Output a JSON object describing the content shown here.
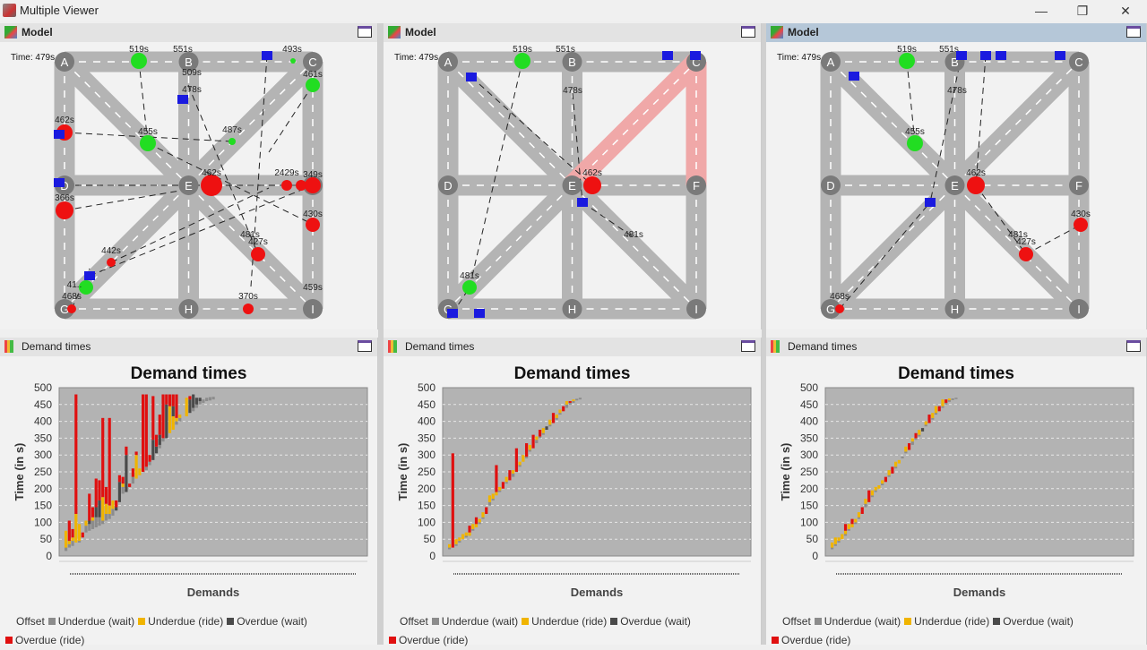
{
  "window": {
    "title": "Multiple Viewer",
    "minimize": "—",
    "restore": "❐",
    "close": "✕"
  },
  "colors": {
    "road": "#b4b4b4",
    "node": "#7a7a7a",
    "green": "#22dd22",
    "red": "#ee1111",
    "vehicle": "#1a1adf",
    "highlight": "#f0a8a8",
    "offset": "#b0b0b0",
    "underdue_wait": "#8c8c8c",
    "underdue_ride": "#f0b400",
    "overdue_wait": "#4a4a4a",
    "overdue_ride": "#e01010",
    "plot_bg": "#b3b3b3"
  },
  "nodes": [
    "A",
    "B",
    "C",
    "D",
    "E",
    "F",
    "G",
    "H",
    "I"
  ],
  "models": [
    {
      "title": "Model",
      "time": "Time: 479s",
      "labels": [
        "519s",
        "551s",
        "493s",
        "461s",
        "509s",
        "478s",
        "462s",
        "455s",
        "487s",
        "462s",
        "2429s",
        "349s",
        "366s",
        "430s",
        "481s",
        "427s",
        "442s",
        "41..",
        "468s",
        "370s",
        "459s"
      ]
    },
    {
      "title": "Model",
      "time": "Time: 479s",
      "labels": [
        "519s",
        "551s",
        "478s",
        "462s",
        "481s",
        "481s"
      ]
    },
    {
      "title": "Model",
      "time": "Time: 479s",
      "labels": [
        "519s",
        "551s",
        "478s",
        "455s",
        "462s",
        "430s",
        "481s",
        "427s",
        "468s"
      ]
    }
  ],
  "charts_header": "Demand times",
  "legend": [
    "Offset",
    "Underdue (wait)",
    "Underdue (ride)",
    "Overdue (wait)",
    "Overdue (ride)"
  ],
  "chart_data": [
    {
      "type": "bar",
      "stacked": true,
      "title": "Demand times",
      "xlabel": "Demands",
      "ylabel": "Time (in s)",
      "ylim": [
        0,
        500
      ],
      "yticks": [
        0,
        50,
        100,
        150,
        200,
        250,
        300,
        350,
        400,
        450,
        500
      ],
      "grid": true,
      "legend_position": "bottom",
      "series_order": [
        "Offset",
        "Underdue (wait)",
        "Underdue (ride)",
        "Overdue (wait)",
        "Overdue (ride)"
      ],
      "bars": [
        [
          15,
          10,
          50,
          0,
          0
        ],
        [
          25,
          10,
          10,
          0,
          60
        ],
        [
          30,
          15,
          10,
          0,
          25
        ],
        [
          40,
          0,
          85,
          0,
          355
        ],
        [
          40,
          5,
          50,
          0,
          0
        ],
        [
          55,
          0,
          0,
          0,
          15
        ],
        [
          70,
          20,
          15,
          0,
          0
        ],
        [
          75,
          20,
          0,
          10,
          80
        ],
        [
          80,
          25,
          10,
          0,
          30
        ],
        [
          85,
          30,
          0,
          30,
          85
        ],
        [
          90,
          25,
          0,
          50,
          60
        ],
        [
          95,
          10,
          70,
          0,
          235
        ],
        [
          105,
          20,
          30,
          0,
          50
        ],
        [
          110,
          15,
          25,
          0,
          260
        ],
        [
          120,
          20,
          25,
          0,
          0
        ],
        [
          135,
          0,
          0,
          10,
          20
        ],
        [
          160,
          0,
          0,
          60,
          20
        ],
        [
          185,
          20,
          10,
          0,
          20
        ],
        [
          190,
          0,
          0,
          110,
          25
        ],
        [
          205,
          0,
          0,
          0,
          10
        ],
        [
          215,
          20,
          0,
          0,
          25
        ],
        [
          230,
          0,
          70,
          0,
          10
        ],
        [
          240,
          0,
          20,
          0,
          0
        ],
        [
          250,
          0,
          0,
          0,
          230
        ],
        [
          255,
          10,
          0,
          0,
          215
        ],
        [
          270,
          10,
          0,
          0,
          20
        ],
        [
          285,
          0,
          0,
          60,
          130
        ],
        [
          305,
          0,
          0,
          20,
          35
        ],
        [
          320,
          10,
          0,
          30,
          60
        ],
        [
          340,
          10,
          0,
          0,
          130
        ],
        [
          350,
          0,
          0,
          100,
          30
        ],
        [
          365,
          0,
          80,
          0,
          35
        ],
        [
          375,
          0,
          40,
          30,
          35
        ],
        [
          390,
          10,
          10,
          0,
          70
        ],
        [
          400,
          10,
          10,
          0,
          0
        ],
        [
          410,
          0,
          0,
          0,
          0
        ],
        [
          415,
          0,
          55,
          0,
          0
        ],
        [
          425,
          0,
          0,
          40,
          10
        ],
        [
          430,
          10,
          0,
          40,
          0
        ],
        [
          440,
          10,
          0,
          20,
          0
        ],
        [
          450,
          10,
          0,
          10,
          0
        ],
        [
          455,
          10,
          0,
          0,
          0
        ],
        [
          460,
          10,
          0,
          0,
          0
        ],
        [
          462,
          10,
          0,
          0,
          0
        ],
        [
          465,
          8,
          0,
          0,
          0
        ]
      ]
    },
    {
      "type": "bar",
      "stacked": true,
      "title": "Demand times",
      "xlabel": "Demands",
      "ylabel": "Time (in s)",
      "ylim": [
        0,
        500
      ],
      "yticks": [
        0,
        50,
        100,
        150,
        200,
        250,
        300,
        350,
        400,
        450,
        500
      ],
      "grid": true,
      "legend_position": "bottom",
      "series_order": [
        "Offset",
        "Underdue (wait)",
        "Underdue (ride)",
        "Overdue (wait)",
        "Overdue (ride)"
      ],
      "bars": [
        [
          20,
          5,
          10,
          0,
          0
        ],
        [
          25,
          0,
          0,
          0,
          280
        ],
        [
          30,
          5,
          15,
          0,
          0
        ],
        [
          40,
          5,
          10,
          0,
          0
        ],
        [
          50,
          0,
          15,
          0,
          0
        ],
        [
          55,
          5,
          10,
          0,
          0
        ],
        [
          60,
          0,
          10,
          0,
          20
        ],
        [
          75,
          5,
          15,
          0,
          0
        ],
        [
          85,
          0,
          10,
          0,
          20
        ],
        [
          95,
          5,
          10,
          0,
          0
        ],
        [
          110,
          5,
          15,
          0,
          0
        ],
        [
          125,
          0,
          0,
          0,
          20
        ],
        [
          150,
          10,
          20,
          0,
          0
        ],
        [
          165,
          5,
          15,
          0,
          0
        ],
        [
          180,
          0,
          10,
          0,
          80
        ],
        [
          190,
          5,
          10,
          0,
          0
        ],
        [
          200,
          0,
          0,
          0,
          20
        ],
        [
          215,
          5,
          15,
          0,
          0
        ],
        [
          225,
          0,
          0,
          0,
          30
        ],
        [
          235,
          10,
          10,
          0,
          0
        ],
        [
          250,
          0,
          0,
          0,
          70
        ],
        [
          265,
          5,
          10,
          0,
          0
        ],
        [
          280,
          0,
          20,
          0,
          0
        ],
        [
          290,
          5,
          0,
          0,
          40
        ],
        [
          310,
          5,
          15,
          0,
          0
        ],
        [
          320,
          0,
          0,
          0,
          40
        ],
        [
          335,
          10,
          10,
          0,
          0
        ],
        [
          350,
          5,
          0,
          0,
          20
        ],
        [
          360,
          5,
          15,
          0,
          0
        ],
        [
          375,
          0,
          0,
          10,
          0
        ],
        [
          385,
          5,
          15,
          0,
          0
        ],
        [
          395,
          0,
          0,
          0,
          30
        ],
        [
          405,
          5,
          10,
          0,
          0
        ],
        [
          420,
          5,
          10,
          0,
          0
        ],
        [
          430,
          0,
          0,
          0,
          15
        ],
        [
          440,
          10,
          10,
          0,
          0
        ],
        [
          450,
          5,
          0,
          0,
          5
        ],
        [
          455,
          5,
          5,
          0,
          0
        ],
        [
          462,
          5,
          0,
          0,
          0
        ],
        [
          465,
          5,
          0,
          0,
          0
        ]
      ]
    },
    {
      "type": "bar",
      "stacked": true,
      "title": "Demand times",
      "xlabel": "Demands",
      "ylabel": "Time (in s)",
      "ylim": [
        0,
        500
      ],
      "yticks": [
        0,
        50,
        100,
        150,
        200,
        250,
        300,
        350,
        400,
        450,
        500
      ],
      "grid": true,
      "legend_position": "bottom",
      "series_order": [
        "Offset",
        "Underdue (wait)",
        "Underdue (ride)",
        "Overdue (wait)",
        "Overdue (ride)"
      ],
      "bars": [
        [
          20,
          5,
          15,
          0,
          0
        ],
        [
          30,
          5,
          20,
          0,
          0
        ],
        [
          40,
          5,
          10,
          0,
          0
        ],
        [
          50,
          0,
          15,
          0,
          0
        ],
        [
          60,
          5,
          10,
          0,
          20
        ],
        [
          75,
          5,
          15,
          0,
          0
        ],
        [
          85,
          0,
          10,
          0,
          15
        ],
        [
          95,
          5,
          10,
          0,
          0
        ],
        [
          110,
          5,
          15,
          0,
          0
        ],
        [
          125,
          0,
          0,
          0,
          20
        ],
        [
          145,
          10,
          15,
          0,
          0
        ],
        [
          160,
          0,
          0,
          0,
          35
        ],
        [
          175,
          5,
          15,
          0,
          0
        ],
        [
          190,
          5,
          10,
          0,
          0
        ],
        [
          200,
          0,
          10,
          0,
          0
        ],
        [
          210,
          5,
          10,
          0,
          0
        ],
        [
          220,
          0,
          0,
          0,
          15
        ],
        [
          235,
          5,
          15,
          0,
          0
        ],
        [
          245,
          0,
          0,
          0,
          20
        ],
        [
          260,
          5,
          15,
          0,
          0
        ],
        [
          275,
          0,
          10,
          0,
          0
        ],
        [
          290,
          5,
          0,
          0,
          0
        ],
        [
          305,
          5,
          15,
          0,
          0
        ],
        [
          315,
          0,
          0,
          0,
          20
        ],
        [
          330,
          10,
          10,
          0,
          0
        ],
        [
          345,
          5,
          0,
          0,
          15
        ],
        [
          355,
          5,
          15,
          0,
          0
        ],
        [
          370,
          0,
          0,
          10,
          0
        ],
        [
          385,
          5,
          10,
          0,
          0
        ],
        [
          395,
          0,
          0,
          0,
          25
        ],
        [
          405,
          5,
          15,
          0,
          0
        ],
        [
          420,
          5,
          20,
          0,
          0
        ],
        [
          430,
          0,
          0,
          0,
          15
        ],
        [
          440,
          5,
          20,
          0,
          0
        ],
        [
          450,
          5,
          0,
          0,
          10
        ],
        [
          458,
          5,
          5,
          0,
          0
        ],
        [
          463,
          5,
          0,
          0,
          0
        ],
        [
          466,
          4,
          0,
          0,
          0
        ]
      ]
    }
  ]
}
